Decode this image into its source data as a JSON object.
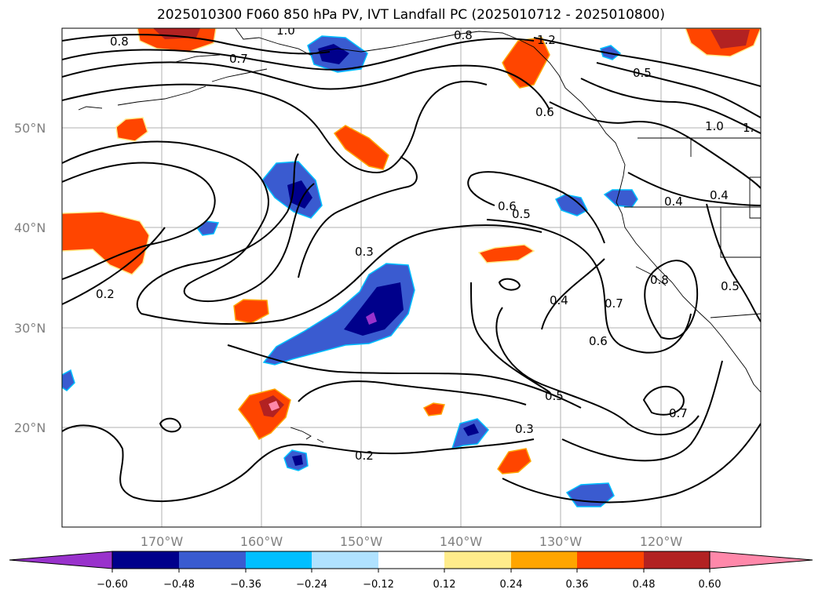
{
  "title": "2025010300 F060 850 hPa PV, IVT Landfall PC (2025010712 - 2025010800)",
  "map": {
    "lat_labels": [
      "50°N",
      "40°N",
      "30°N",
      "20°N"
    ],
    "lon_labels": [
      "170°W",
      "160°W",
      "150°W",
      "140°W",
      "130°W",
      "120°W"
    ],
    "contour_labels": [
      "0.8",
      "0.7",
      "1.0",
      "0.8",
      "1.2",
      "0.6",
      "1.0",
      "1.",
      "0.6",
      "0.5",
      "0.4",
      "0.4",
      "0.3",
      "0.2",
      "0.4",
      "0.7",
      "0.6",
      "0.8",
      "0.5",
      "0.5",
      "0.3",
      "0.2",
      "0.7",
      "0.5"
    ]
  },
  "colorbar": {
    "ticks": [
      "−0.60",
      "−0.48",
      "−0.36",
      "−0.24",
      "−0.12",
      "0.12",
      "0.24",
      "0.36",
      "0.48",
      "0.60"
    ],
    "colors": [
      "#9932cc",
      "#00008b",
      "#3a5bd0",
      "#00bfff",
      "#b0e2ff",
      "#ffffff",
      "#ffec8b",
      "#ffa500",
      "#ff4500",
      "#b22222",
      "#ff88aa"
    ]
  }
}
